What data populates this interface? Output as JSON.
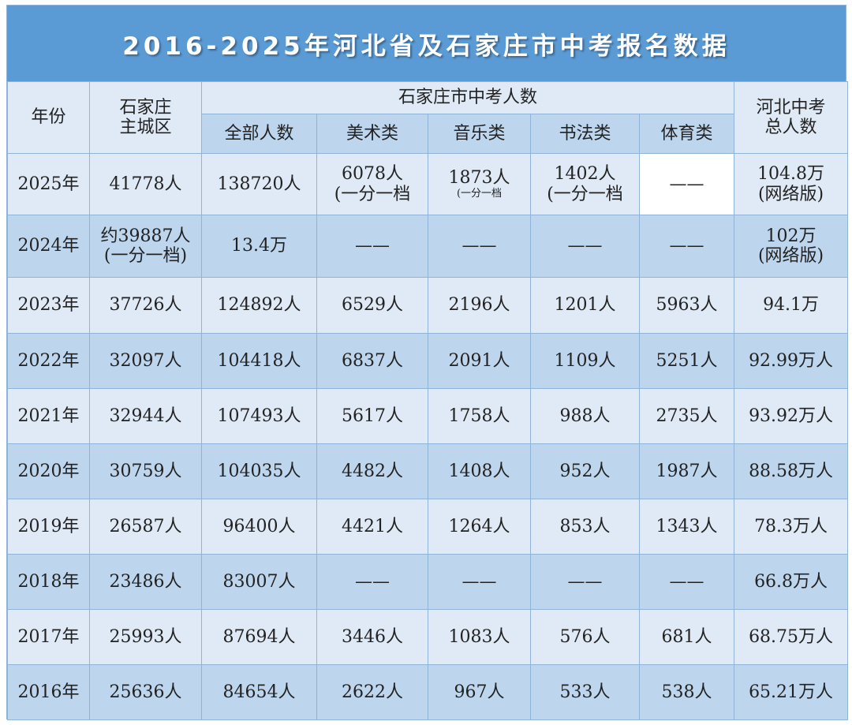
{
  "title": "2016-2025年河北省及石家庄市中考报名数据",
  "headers": {
    "year": "年份",
    "main_district_line1": "石家庄",
    "main_district_line2": "主城区",
    "group": "石家庄市中考人数",
    "total": "全部人数",
    "art": "美术类",
    "music": "音乐类",
    "calligraphy": "书法类",
    "sports": "体育类",
    "hebei_line1": "河北中考",
    "hebei_line2": "总人数"
  },
  "rows": [
    {
      "year": "2025年",
      "main": "41778人",
      "main_note": "",
      "total": "138720人",
      "art": "6078人",
      "art_note": "(一分一档",
      "music": "1873人",
      "music_note": "(一分一档",
      "calligraphy": "1402人",
      "calligraphy_note": "(一分一档",
      "sports": "——",
      "hebei": "104.8万",
      "hebei_note": "(网络版)"
    },
    {
      "year": "2024年",
      "main": "约39887人",
      "main_note": "(一分一档)",
      "total": "13.4万",
      "art": "——",
      "art_note": "",
      "music": "——",
      "music_note": "",
      "calligraphy": "——",
      "calligraphy_note": "",
      "sports": "——",
      "hebei": "102万",
      "hebei_note": "(网络版)"
    },
    {
      "year": "2023年",
      "main": "37726人",
      "main_note": "",
      "total": "124892人",
      "art": "6529人",
      "art_note": "",
      "music": "2196人",
      "music_note": "",
      "calligraphy": "1201人",
      "calligraphy_note": "",
      "sports": "5963人",
      "hebei": "94.1万",
      "hebei_note": ""
    },
    {
      "year": "2022年",
      "main": "32097人",
      "main_note": "",
      "total": "104418人",
      "art": "6837人",
      "art_note": "",
      "music": "2091人",
      "music_note": "",
      "calligraphy": "1109人",
      "calligraphy_note": "",
      "sports": "5251人",
      "hebei": "92.99万人",
      "hebei_note": ""
    },
    {
      "year": "2021年",
      "main": "32944人",
      "main_note": "",
      "total": "107493人",
      "art": "5617人",
      "art_note": "",
      "music": "1758人",
      "music_note": "",
      "calligraphy": "988人",
      "calligraphy_note": "",
      "sports": "2735人",
      "hebei": "93.92万人",
      "hebei_note": ""
    },
    {
      "year": "2020年",
      "main": "30759人",
      "main_note": "",
      "total": "104035人",
      "art": "4482人",
      "art_note": "",
      "music": "1408人",
      "music_note": "",
      "calligraphy": "952人",
      "calligraphy_note": "",
      "sports": "1987人",
      "hebei": "88.58万人",
      "hebei_note": ""
    },
    {
      "year": "2019年",
      "main": "26587人",
      "main_note": "",
      "total": "96400人",
      "art": "4421人",
      "art_note": "",
      "music": "1264人",
      "music_note": "",
      "calligraphy": "853人",
      "calligraphy_note": "",
      "sports": "1343人",
      "hebei": "78.3万人",
      "hebei_note": ""
    },
    {
      "year": "2018年",
      "main": "23486人",
      "main_note": "",
      "total": "83007人",
      "art": "——",
      "art_note": "",
      "music": "——",
      "music_note": "",
      "calligraphy": "——",
      "calligraphy_note": "",
      "sports": "——",
      "hebei": "66.8万人",
      "hebei_note": ""
    },
    {
      "year": "2017年",
      "main": "25993人",
      "main_note": "",
      "total": "87694人",
      "art": "3446人",
      "art_note": "",
      "music": "1083人",
      "music_note": "",
      "calligraphy": "576人",
      "calligraphy_note": "",
      "sports": "681人",
      "hebei": "68.75万人",
      "hebei_note": ""
    },
    {
      "year": "2016年",
      "main": "25636人",
      "main_note": "",
      "total": "84654人",
      "art": "2622人",
      "art_note": "",
      "music": "967人",
      "music_note": "",
      "calligraphy": "533人",
      "calligraphy_note": "",
      "sports": "538人",
      "hebei": "65.21万人",
      "hebei_note": ""
    }
  ],
  "colors": {
    "title_bg": "#5b9bd5",
    "title_text": "#ffffff",
    "row_light": "#dfeaf6",
    "row_dark": "#bdd6ee",
    "border": "#8fb4d8"
  }
}
